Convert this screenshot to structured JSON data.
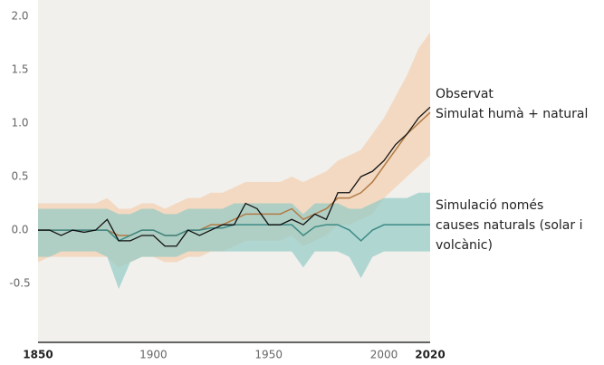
{
  "chart_data": {
    "type": "line",
    "x": [
      1850,
      1855,
      1860,
      1865,
      1870,
      1875,
      1880,
      1885,
      1890,
      1895,
      1900,
      1905,
      1910,
      1915,
      1920,
      1925,
      1930,
      1935,
      1940,
      1945,
      1950,
      1955,
      1960,
      1965,
      1970,
      1975,
      1980,
      1985,
      1990,
      1995,
      2000,
      2005,
      2010,
      2015,
      2020
    ],
    "xlim": [
      1850,
      2020
    ],
    "xticks": [
      1850,
      1900,
      1950,
      2000,
      2020
    ],
    "ylim": [
      -1.05,
      2.0
    ],
    "yticks": [
      {
        "value": 2,
        "label": "2.0"
      },
      1.5,
      {
        "value": 1,
        "label": "1.0"
      },
      0.5,
      {
        "value": 0,
        "label": "0.0"
      },
      -0.5
    ],
    "series": [
      {
        "name": "Simulat humà + natural",
        "color": "#b07a45",
        "band_color": "#f4cfae",
        "values": [
          0,
          0,
          0,
          0,
          0,
          0,
          0,
          -0.05,
          -0.05,
          0,
          0,
          -0.05,
          -0.05,
          0,
          0,
          0.05,
          0.05,
          0.1,
          0.15,
          0.15,
          0.15,
          0.15,
          0.2,
          0.1,
          0.15,
          0.2,
          0.3,
          0.3,
          0.35,
          0.45,
          0.6,
          0.75,
          0.9,
          1.0,
          1.1
        ],
        "lower": [
          -0.3,
          -0.25,
          -0.25,
          -0.25,
          -0.25,
          -0.25,
          -0.25,
          -0.35,
          -0.3,
          -0.25,
          -0.25,
          -0.3,
          -0.3,
          -0.25,
          -0.25,
          -0.2,
          -0.2,
          -0.15,
          -0.1,
          -0.1,
          -0.1,
          -0.1,
          -0.05,
          -0.15,
          -0.1,
          -0.05,
          0.05,
          0.05,
          0.1,
          0.15,
          0.3,
          0.4,
          0.5,
          0.6,
          0.7
        ],
        "upper": [
          0.25,
          0.25,
          0.25,
          0.25,
          0.25,
          0.25,
          0.3,
          0.2,
          0.2,
          0.25,
          0.25,
          0.2,
          0.25,
          0.3,
          0.3,
          0.35,
          0.35,
          0.4,
          0.45,
          0.45,
          0.45,
          0.45,
          0.5,
          0.45,
          0.5,
          0.55,
          0.65,
          0.7,
          0.75,
          0.9,
          1.05,
          1.25,
          1.45,
          1.7,
          1.85
        ]
      },
      {
        "name": "Simulació només causes naturals (solar i volcànic)",
        "color": "#3d8a86",
        "band_color": "#93cbc4",
        "values": [
          0,
          0,
          0,
          0,
          0,
          0,
          0,
          -0.1,
          -0.05,
          0,
          0,
          -0.05,
          -0.05,
          0,
          0,
          0.02,
          0.02,
          0.05,
          0.05,
          0.05,
          0.05,
          0.05,
          0.05,
          -0.05,
          0.03,
          0.05,
          0.05,
          0,
          -0.1,
          0,
          0.05,
          0.05,
          0.05,
          0.05,
          0.05
        ],
        "lower": [
          -0.25,
          -0.25,
          -0.2,
          -0.2,
          -0.2,
          -0.2,
          -0.25,
          -0.55,
          -0.3,
          -0.25,
          -0.25,
          -0.25,
          -0.25,
          -0.2,
          -0.2,
          -0.2,
          -0.2,
          -0.2,
          -0.2,
          -0.2,
          -0.2,
          -0.2,
          -0.2,
          -0.35,
          -0.2,
          -0.2,
          -0.2,
          -0.25,
          -0.45,
          -0.25,
          -0.2,
          -0.2,
          -0.2,
          -0.2,
          -0.2
        ],
        "upper": [
          0.2,
          0.2,
          0.2,
          0.2,
          0.2,
          0.2,
          0.2,
          0.15,
          0.15,
          0.2,
          0.2,
          0.15,
          0.15,
          0.2,
          0.2,
          0.2,
          0.2,
          0.25,
          0.25,
          0.25,
          0.25,
          0.25,
          0.25,
          0.15,
          0.25,
          0.25,
          0.25,
          0.2,
          0.2,
          0.25,
          0.3,
          0.3,
          0.3,
          0.35,
          0.35
        ]
      },
      {
        "name": "Observat",
        "color": "#111111",
        "values": [
          0,
          0,
          -0.05,
          0,
          -0.02,
          0,
          0.1,
          -0.1,
          -0.1,
          -0.05,
          -0.05,
          -0.15,
          -0.15,
          0,
          -0.05,
          0,
          0.05,
          0.05,
          0.25,
          0.2,
          0.05,
          0.05,
          0.1,
          0.05,
          0.15,
          0.1,
          0.35,
          0.35,
          0.5,
          0.55,
          0.65,
          0.8,
          0.9,
          1.05,
          1.15
        ]
      }
    ],
    "annotations": [
      "Observat",
      "Simulat humà + natural",
      "Simulació només",
      "causes naturals (solar i",
      "volcànic)"
    ]
  }
}
